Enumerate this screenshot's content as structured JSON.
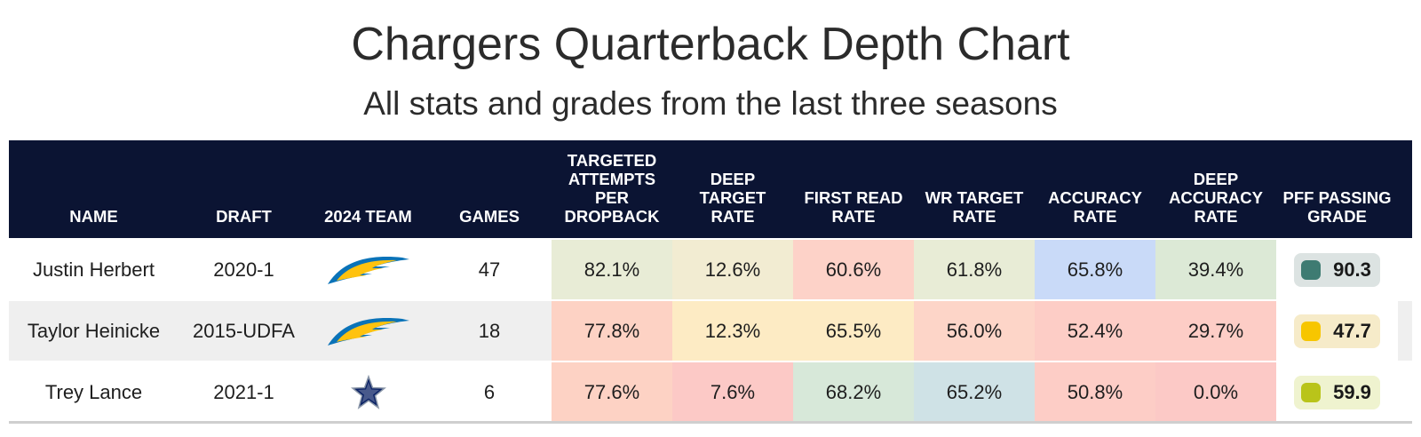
{
  "title": "Chargers Quarterback Depth Chart",
  "subtitle": "All stats and grades from the last three seasons",
  "columns": [
    {
      "key": "name",
      "lines": [
        "NAME"
      ]
    },
    {
      "key": "draft",
      "lines": [
        "DRAFT"
      ]
    },
    {
      "key": "team",
      "lines": [
        "2024 TEAM"
      ]
    },
    {
      "key": "games",
      "lines": [
        "GAMES"
      ]
    },
    {
      "key": "tapd",
      "lines": [
        "TARGETED",
        "ATTEMPTS",
        "PER",
        "DROPBACK"
      ]
    },
    {
      "key": "dtr",
      "lines": [
        "DEEP",
        "TARGET",
        "RATE"
      ]
    },
    {
      "key": "frr",
      "lines": [
        "FIRST READ",
        "RATE"
      ]
    },
    {
      "key": "wrtr",
      "lines": [
        "WR TARGET",
        "RATE"
      ]
    },
    {
      "key": "acc",
      "lines": [
        "ACCURACY",
        "RATE"
      ]
    },
    {
      "key": "dacc",
      "lines": [
        "DEEP",
        "ACCURACY",
        "RATE"
      ]
    },
    {
      "key": "grade",
      "lines": [
        "PFF PASSING",
        "GRADE"
      ]
    }
  ],
  "rows": [
    {
      "name": "Justin Herbert",
      "draft": "2020-1",
      "team_icon": "chargers-bolt-icon",
      "games": "47",
      "stats": [
        {
          "value": "82.1%",
          "color": "#e8ecd6"
        },
        {
          "value": "12.6%",
          "color": "#f2ecd2"
        },
        {
          "value": "60.6%",
          "color": "#fdd2c8"
        },
        {
          "value": "61.8%",
          "color": "#e8ecd6"
        },
        {
          "value": "65.8%",
          "color": "#c9daf8"
        },
        {
          "value": "39.4%",
          "color": "#dce9d6"
        }
      ],
      "grade": {
        "value": "90.3",
        "dot": "#3e7b72",
        "bg": "#dce3e2"
      }
    },
    {
      "name": "Taylor Heinicke",
      "draft": "2015-UDFA",
      "team_icon": "chargers-bolt-icon",
      "games": "18",
      "stats": [
        {
          "value": "77.8%",
          "color": "#fdd2c4"
        },
        {
          "value": "12.3%",
          "color": "#fdebc4"
        },
        {
          "value": "65.5%",
          "color": "#fdebc4"
        },
        {
          "value": "56.0%",
          "color": "#fdd5c8"
        },
        {
          "value": "52.4%",
          "color": "#fdcdc6"
        },
        {
          "value": "29.7%",
          "color": "#fdcdc6"
        }
      ],
      "grade": {
        "value": "47.7",
        "dot": "#f7c600",
        "bg": "#f6ebc9"
      }
    },
    {
      "name": "Trey Lance",
      "draft": "2021-1",
      "team_icon": "cowboys-star-icon",
      "games": "6",
      "stats": [
        {
          "value": "77.6%",
          "color": "#fdd2c4"
        },
        {
          "value": "7.6%",
          "color": "#fcc9c6"
        },
        {
          "value": "68.2%",
          "color": "#d7e8d9"
        },
        {
          "value": "65.2%",
          "color": "#cfe2e6"
        },
        {
          "value": "50.8%",
          "color": "#fdcdc6"
        },
        {
          "value": "0.0%",
          "color": "#fcc9c6"
        }
      ],
      "grade": {
        "value": "59.9",
        "dot": "#b9c41a",
        "bg": "#eff3cf"
      }
    }
  ]
}
